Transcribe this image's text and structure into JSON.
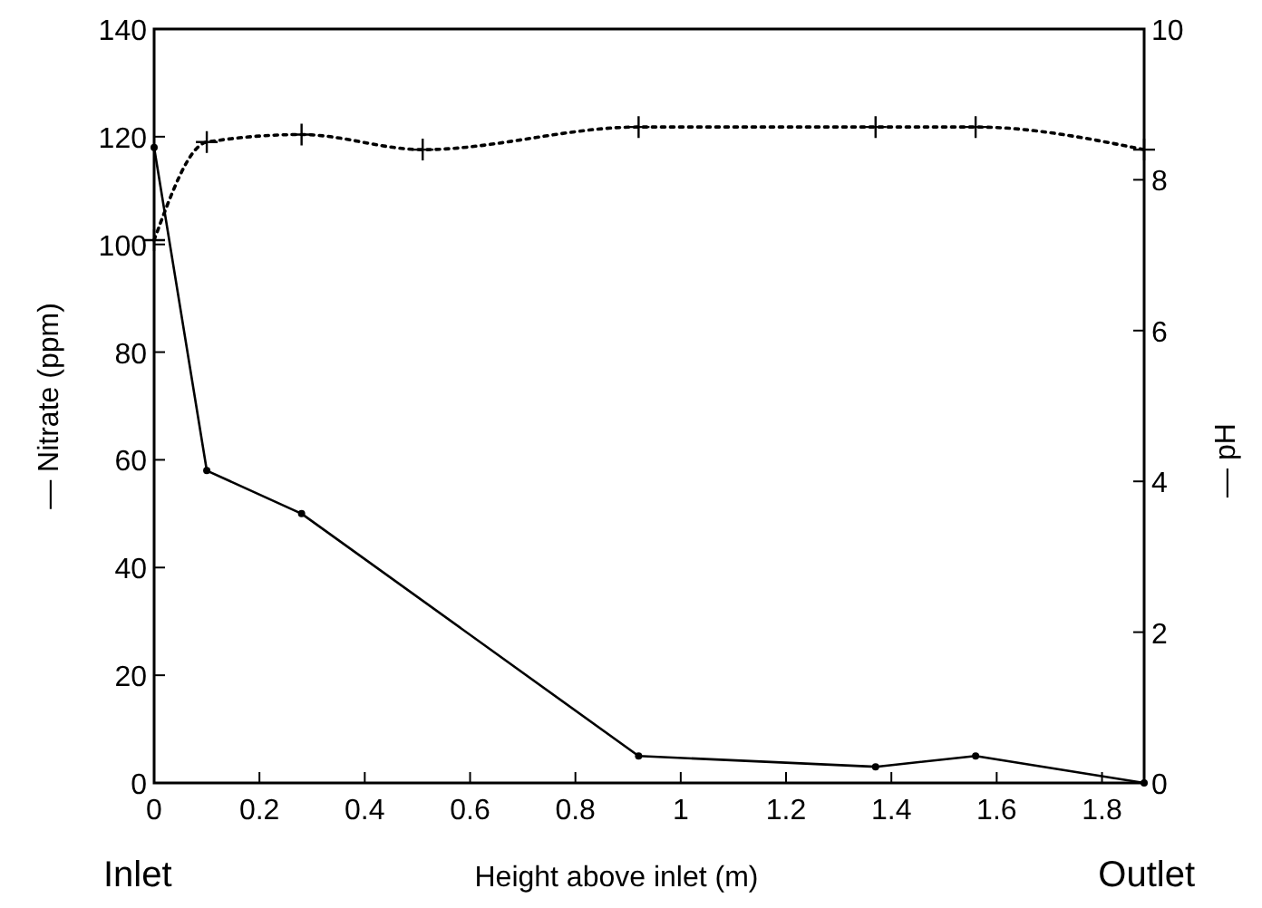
{
  "chart_data": {
    "type": "line",
    "xlabel": "Height above inlet (m)",
    "ylabel": "— Nitrate (ppm)",
    "y2label": "— pH",
    "xlim": [
      0,
      1.88
    ],
    "xticks": [
      0,
      0.2,
      0.4,
      0.6,
      0.8,
      1,
      1.2,
      1.4,
      1.6,
      1.8
    ],
    "ylim": [
      0,
      140
    ],
    "yticks": [
      0,
      20,
      40,
      60,
      80,
      100,
      120,
      140
    ],
    "y2lim": [
      0,
      10
    ],
    "y2ticks": [
      0,
      2,
      4,
      6,
      8,
      10
    ],
    "series": [
      {
        "x": [
          0,
          0.1,
          0.28,
          0.92,
          1.37,
          1.56,
          1.88
        ],
        "values": [
          118,
          58,
          50,
          5,
          3,
          5,
          0
        ],
        "color": "#000000",
        "marker": "circle",
        "line_style": "solid"
      },
      {
        "x": [
          0,
          0.1,
          0.28,
          0.51,
          0.92,
          1.37,
          1.56,
          1.88
        ],
        "values": [
          7.2,
          8.5,
          8.6,
          8.4,
          8.7,
          8.7,
          8.7,
          8.4
        ],
        "color": "#000000",
        "marker": "cross",
        "line_style": "dotted",
        "axis": "y2"
      }
    ],
    "annotations": [
      "Inlet",
      "Outlet"
    ],
    "grid": false
  }
}
